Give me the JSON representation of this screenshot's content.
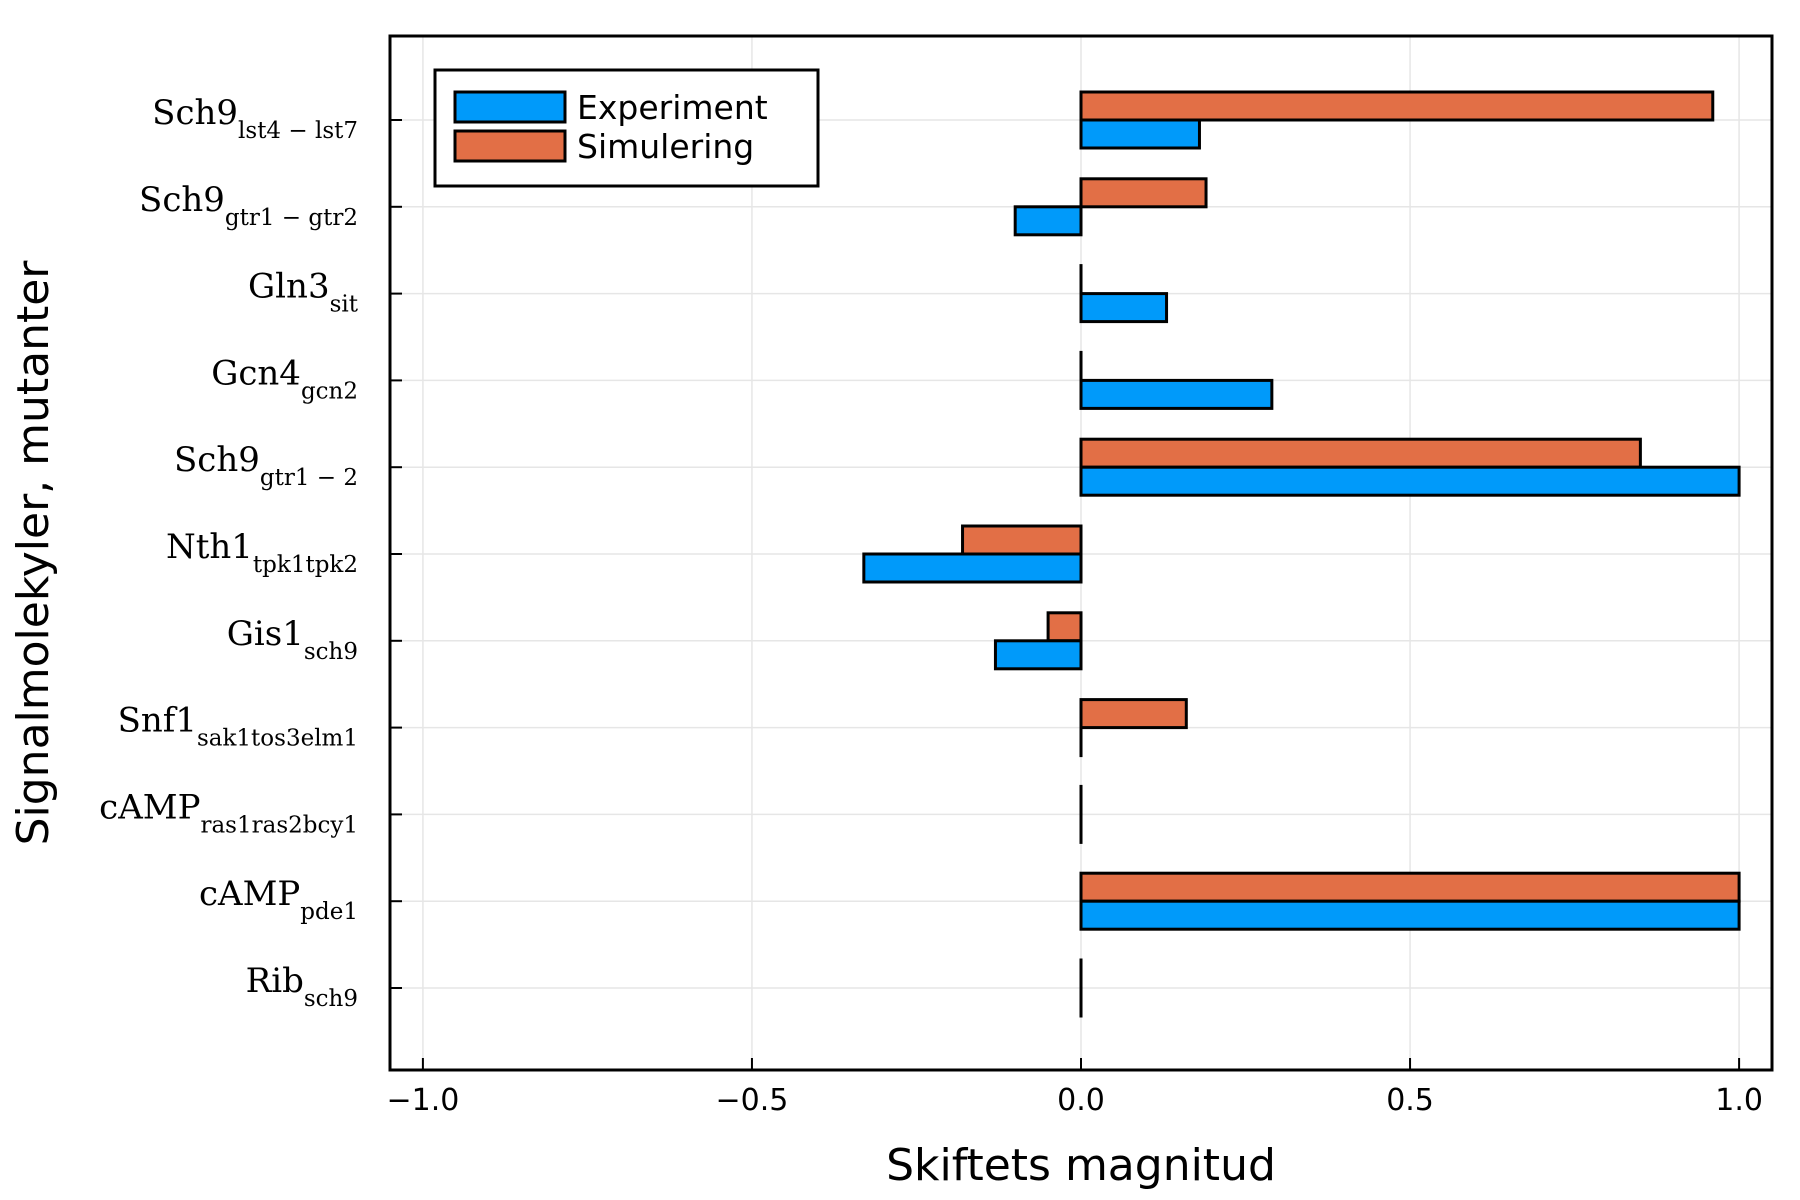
{
  "chart_data": {
    "type": "bar",
    "orientation": "horizontal",
    "xlabel": "Skiftets magnitud",
    "ylabel": "Signalmolekyler, mutanter",
    "xlim": [
      -1.05,
      1.05
    ],
    "xticks": [
      -1.0,
      -0.5,
      0.0,
      0.5,
      1.0
    ],
    "xtick_labels": [
      "−1.0",
      "−0.5",
      "0.0",
      "0.5",
      "1.0"
    ],
    "grid": true,
    "legend_position": "top-left",
    "categories": [
      {
        "main": "Sch9",
        "sub": "lst4 − lst7"
      },
      {
        "main": "Sch9",
        "sub": "gtr1 − gtr2"
      },
      {
        "main": "Gln3",
        "sub": "sit"
      },
      {
        "main": "Gcn4",
        "sub": "gcn2"
      },
      {
        "main": "Sch9",
        "sub": "gtr1 − 2"
      },
      {
        "main": "Nth1",
        "sub": "tpk1tpk2"
      },
      {
        "main": "Gis1",
        "sub": "sch9"
      },
      {
        "main": "Snf1",
        "sub": "sak1tos3elm1"
      },
      {
        "main": "cAMP",
        "sub": "ras1ras2bcy1"
      },
      {
        "main": "cAMP",
        "sub": "pde1"
      },
      {
        "main": "Rib",
        "sub": "sch9"
      }
    ],
    "series": [
      {
        "name": "Experiment",
        "color": "#009AFA",
        "values": [
          0.18,
          -0.1,
          0.13,
          0.29,
          1.0,
          -0.33,
          -0.13,
          0.0,
          0.0,
          1.0,
          0.0
        ]
      },
      {
        "name": "Simulering",
        "color": "#E26F46",
        "values": [
          0.96,
          0.19,
          0.0,
          0.0,
          0.85,
          -0.18,
          -0.05,
          0.16,
          0.0,
          1.0,
          0.0
        ]
      }
    ]
  }
}
